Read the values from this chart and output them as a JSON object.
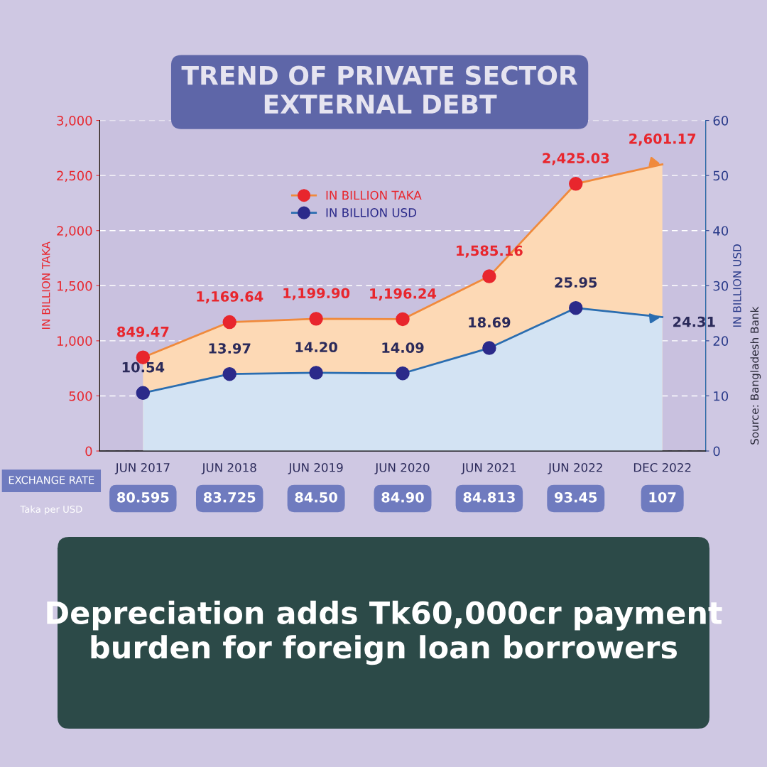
{
  "chart_data": {
    "type": "area",
    "title": "TREND OF PRIVATE SECTOR EXTERNAL DEBT",
    "categories": [
      "JUN 2017",
      "JUN 2018",
      "JUN 2019",
      "JUN 2020",
      "JUN 2021",
      "JUN 2022",
      "DEC 2022"
    ],
    "series": [
      {
        "name": "IN BILLION TAKA",
        "color": "#f08a3c",
        "values": [
          849.47,
          1169.64,
          1199.9,
          1196.24,
          1585.16,
          2425.03,
          2601.17
        ],
        "colors": [
          "#e8262d",
          "#e8262d",
          "#e8262d",
          "#e8262d",
          "#e8262d",
          "#e8262d",
          null
        ],
        "value_labels": [
          "849.47",
          "1,169.64",
          "1,199.90",
          "1,196.24",
          "1,585.16",
          "2,425.03",
          "2,601.17"
        ]
      },
      {
        "name": "IN BILLION USD",
        "color": "#2a6db0",
        "axis": "y2",
        "values": [
          10.54,
          13.97,
          14.2,
          14.09,
          18.69,
          25.95,
          24.31
        ],
        "colors": [
          "#2b2a8a",
          "#2b2a8a",
          "#2b2a8a",
          "#2b2a8a",
          "#2b2a8a",
          "#2b2a8a",
          null
        ],
        "value_labels": [
          "10.54",
          "13.97",
          "14.20",
          "14.09",
          "18.69",
          "25.95",
          "24.31"
        ]
      }
    ],
    "ylim": [
      0,
      3000
    ],
    "yticks": [
      0,
      500,
      {
        "value": 1000,
        "label": "1,000"
      },
      {
        "value": 1500,
        "label": "1,500"
      },
      {
        "value": 2000,
        "label": "2,000"
      },
      {
        "value": 2500,
        "label": "2,500"
      },
      {
        "value": 3000,
        "label": "3,000"
      }
    ],
    "y2lim": [
      0,
      60
    ],
    "y2ticks": [
      0,
      10,
      20,
      30,
      40,
      50,
      60
    ],
    "ylabel": "IN BILLION TAKA",
    "y2label": "IN BILLION USD",
    "grid": "y",
    "legend": "top left",
    "marker": "circle",
    "annotations": [
      "EXCHANGE RATE",
      "Taka per USD",
      "80.595",
      "83.725",
      "84.50",
      "84.90",
      "84.813",
      "93.45",
      "107",
      "Source: Bangladesh Bank",
      "Depreciation adds Tk60,000cr payment burden for foreign loan borrowers"
    ]
  }
}
